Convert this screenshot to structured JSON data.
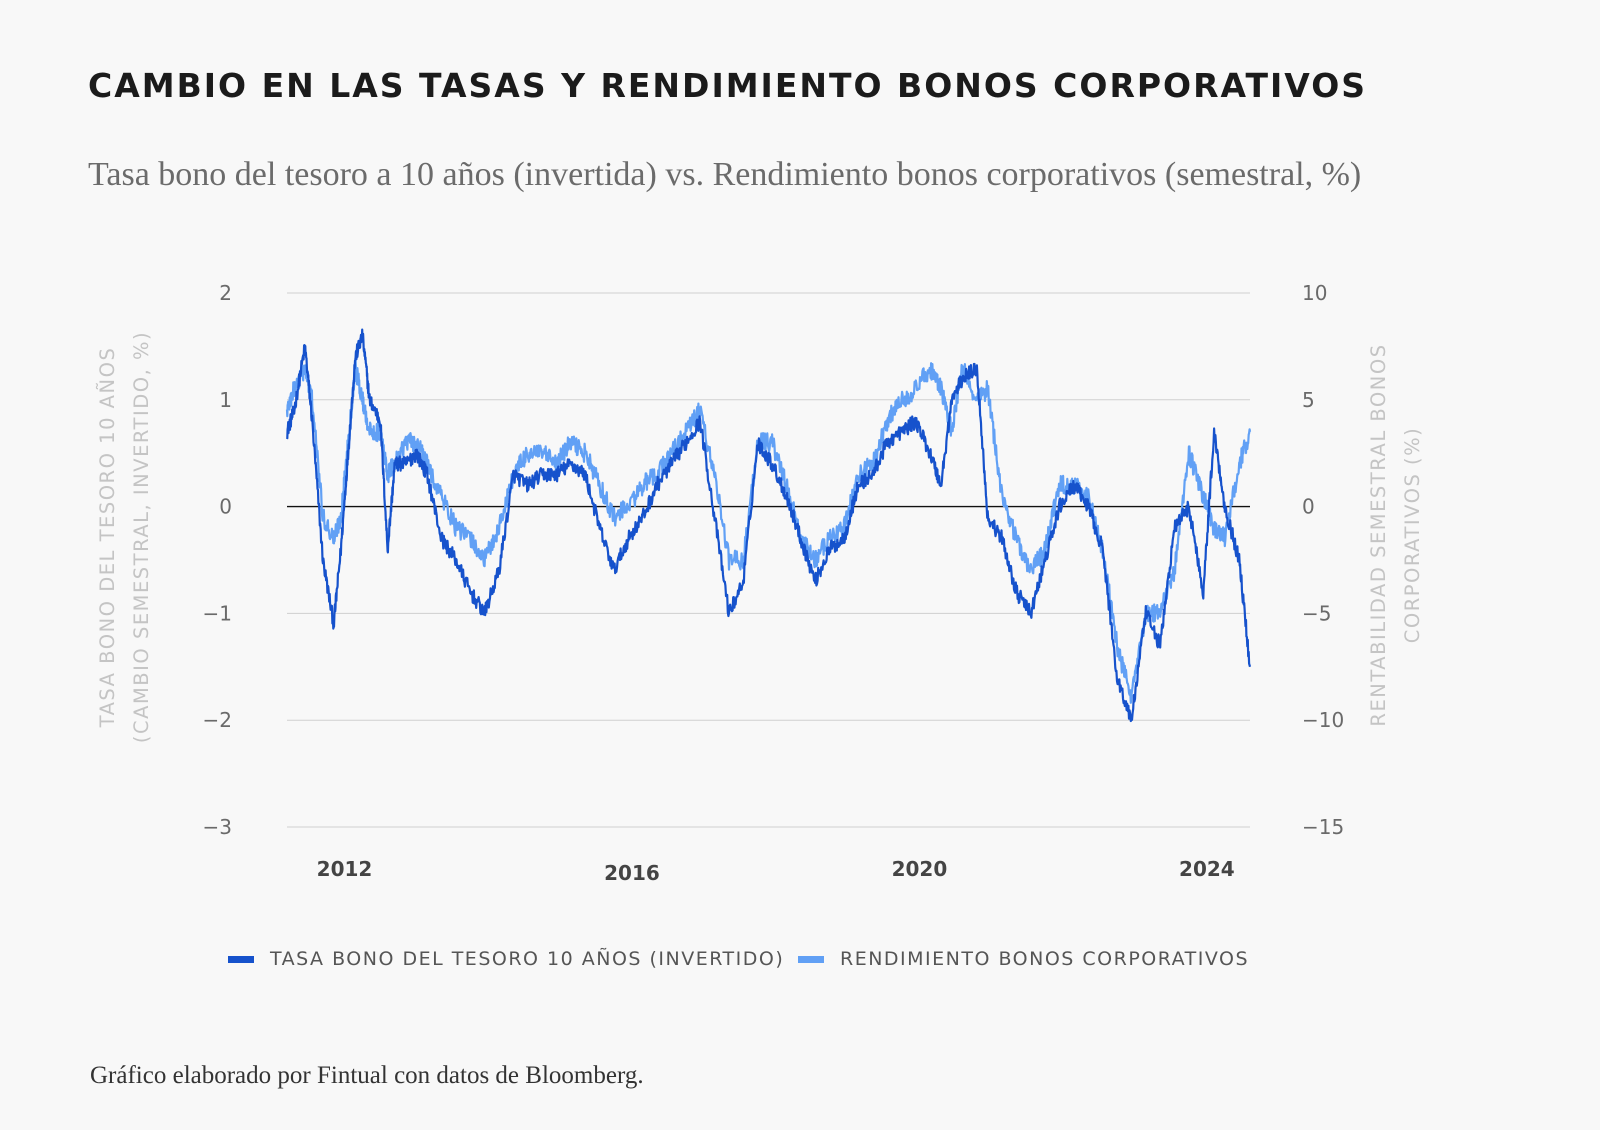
{
  "header": {
    "title": "CAMBIO EN LAS TASAS Y RENDIMIENTO BONOS CORPORATIVOS",
    "subtitle": "Tasa bono del tesoro a 10 años (invertida) vs. Rendimiento bonos corporativos (semestral, %)"
  },
  "footer": {
    "source": "Gráfico elaborado por Fintual con datos de Bloomberg."
  },
  "colors": {
    "treasury": "#1652cc",
    "corporate": "#61a0f5",
    "grid": "#cfcfcf",
    "zero_line": "#111111"
  },
  "chart_data": {
    "type": "line",
    "title": "CAMBIO EN LAS TASAS Y RENDIMIENTO BONOS CORPORATIVOS",
    "subtitle": "Tasa bono del tesoro a 10 años (invertida) vs. Rendimiento bonos corporativos (semestral, %)",
    "x_tick_labels": [
      "2012",
      "2016",
      "2020",
      "2024"
    ],
    "x_tick_years": [
      2012,
      2016,
      2020,
      2024
    ],
    "xlim": [
      2011.2,
      2024.6
    ],
    "y_left": {
      "label_lines": [
        "TASA BONO DEL TESORO 10 AÑOS",
        "(CAMBIO SEMESTRAL, INVERTIDO, %)"
      ],
      "ticks": [
        2,
        1,
        0,
        -1,
        -2,
        -3
      ],
      "tick_labels": [
        "2",
        "1",
        "0",
        "−1",
        "−2",
        "−3"
      ],
      "ylim": [
        -3,
        2
      ]
    },
    "y_right": {
      "label_lines": [
        "RENTABILIDAD  SEMESTRAL BONOS",
        "CORPORATIVOS (%)"
      ],
      "ticks": [
        10,
        5,
        0,
        -5,
        -10,
        -15
      ],
      "tick_labels": [
        "10",
        "5",
        "0",
        "−5",
        "−10",
        "−15"
      ],
      "ylim": [
        -15,
        10
      ]
    },
    "grid": true,
    "legend_position": "bottom",
    "series": [
      {
        "name": "TASA BONO DEL TESORO 10 AÑOS (INVERTIDO)",
        "axis": "left",
        "color": "#1652cc",
        "x": [
          2011.2,
          2011.3,
          2011.45,
          2011.55,
          2011.7,
          2011.85,
          2011.95,
          2012.05,
          2012.15,
          2012.25,
          2012.35,
          2012.5,
          2012.6,
          2012.7,
          2012.85,
          2013.0,
          2013.15,
          2013.35,
          2013.55,
          2013.75,
          2013.95,
          2014.15,
          2014.35,
          2014.55,
          2014.75,
          2014.95,
          2015.15,
          2015.35,
          2015.55,
          2015.75,
          2015.95,
          2016.15,
          2016.35,
          2016.55,
          2016.75,
          2016.95,
          2017.15,
          2017.35,
          2017.55,
          2017.75,
          2017.95,
          2018.15,
          2018.35,
          2018.55,
          2018.75,
          2018.95,
          2019.15,
          2019.35,
          2019.55,
          2019.75,
          2019.95,
          2020.15,
          2020.3,
          2020.45,
          2020.6,
          2020.8,
          2020.95,
          2021.15,
          2021.35,
          2021.55,
          2021.75,
          2021.95,
          2022.15,
          2022.35,
          2022.55,
          2022.75,
          2022.95,
          2023.15,
          2023.35,
          2023.55,
          2023.75,
          2023.95,
          2024.1,
          2024.25,
          2024.45,
          2024.6
        ],
        "y": [
          0.7,
          0.9,
          1.5,
          0.8,
          -0.5,
          -1.1,
          -0.4,
          0.5,
          1.4,
          1.6,
          1.0,
          0.8,
          -0.4,
          0.4,
          0.4,
          0.5,
          0.3,
          -0.3,
          -0.5,
          -0.8,
          -1.0,
          -0.6,
          0.3,
          0.2,
          0.3,
          0.3,
          0.4,
          0.3,
          -0.2,
          -0.6,
          -0.3,
          -0.1,
          0.2,
          0.4,
          0.6,
          0.8,
          -0.1,
          -1.0,
          -0.7,
          0.6,
          0.4,
          0.1,
          -0.3,
          -0.7,
          -0.4,
          -0.3,
          0.2,
          0.3,
          0.6,
          0.7,
          0.8,
          0.5,
          0.2,
          1.0,
          1.2,
          1.3,
          -0.1,
          -0.3,
          -0.8,
          -1.0,
          -0.5,
          0.0,
          0.2,
          0.0,
          -0.4,
          -1.6,
          -2.0,
          -1.0,
          -1.3,
          -0.2,
          0.0,
          -0.8,
          0.7,
          0.0,
          -0.5,
          -1.5
        ]
      },
      {
        "name": "RENDIMIENTO BONOS CORPORATIVOS",
        "axis": "right",
        "color": "#61a0f5",
        "x": [
          2011.2,
          2011.3,
          2011.45,
          2011.55,
          2011.7,
          2011.85,
          2011.95,
          2012.05,
          2012.15,
          2012.25,
          2012.35,
          2012.5,
          2012.6,
          2012.7,
          2012.85,
          2013.0,
          2013.15,
          2013.35,
          2013.55,
          2013.75,
          2013.95,
          2014.15,
          2014.35,
          2014.55,
          2014.75,
          2014.95,
          2015.15,
          2015.35,
          2015.55,
          2015.75,
          2015.95,
          2016.15,
          2016.35,
          2016.55,
          2016.75,
          2016.95,
          2017.15,
          2017.35,
          2017.55,
          2017.75,
          2017.95,
          2018.15,
          2018.35,
          2018.55,
          2018.75,
          2018.95,
          2019.15,
          2019.35,
          2019.55,
          2019.75,
          2019.95,
          2020.15,
          2020.3,
          2020.45,
          2020.6,
          2020.8,
          2020.95,
          2021.15,
          2021.35,
          2021.55,
          2021.75,
          2021.95,
          2022.15,
          2022.35,
          2022.55,
          2022.75,
          2022.95,
          2023.15,
          2023.35,
          2023.55,
          2023.75,
          2023.95,
          2024.1,
          2024.25,
          2024.45,
          2024.6
        ],
        "y": [
          4.5,
          5.5,
          6.5,
          5.0,
          -0.5,
          -1.5,
          -0.5,
          3.0,
          6.5,
          5.0,
          3.5,
          3.5,
          1.5,
          2.0,
          3.0,
          3.0,
          2.0,
          0.5,
          -1.0,
          -1.5,
          -2.5,
          -1.0,
          1.5,
          2.5,
          2.5,
          2.0,
          3.0,
          2.5,
          1.0,
          -0.5,
          0.0,
          1.0,
          1.5,
          2.5,
          3.5,
          4.5,
          1.5,
          -2.5,
          -2.5,
          3.0,
          3.0,
          1.0,
          -1.5,
          -2.5,
          -1.5,
          -1.0,
          1.5,
          2.0,
          4.0,
          5.0,
          5.5,
          6.5,
          5.5,
          3.5,
          6.5,
          5.0,
          5.5,
          0.5,
          -1.5,
          -3.0,
          -2.0,
          1.0,
          1.0,
          0.5,
          -2.0,
          -6.5,
          -9.0,
          -5.0,
          -5.0,
          -3.0,
          2.5,
          0.5,
          -1.0,
          -1.5,
          2.0,
          3.5
        ]
      }
    ]
  }
}
